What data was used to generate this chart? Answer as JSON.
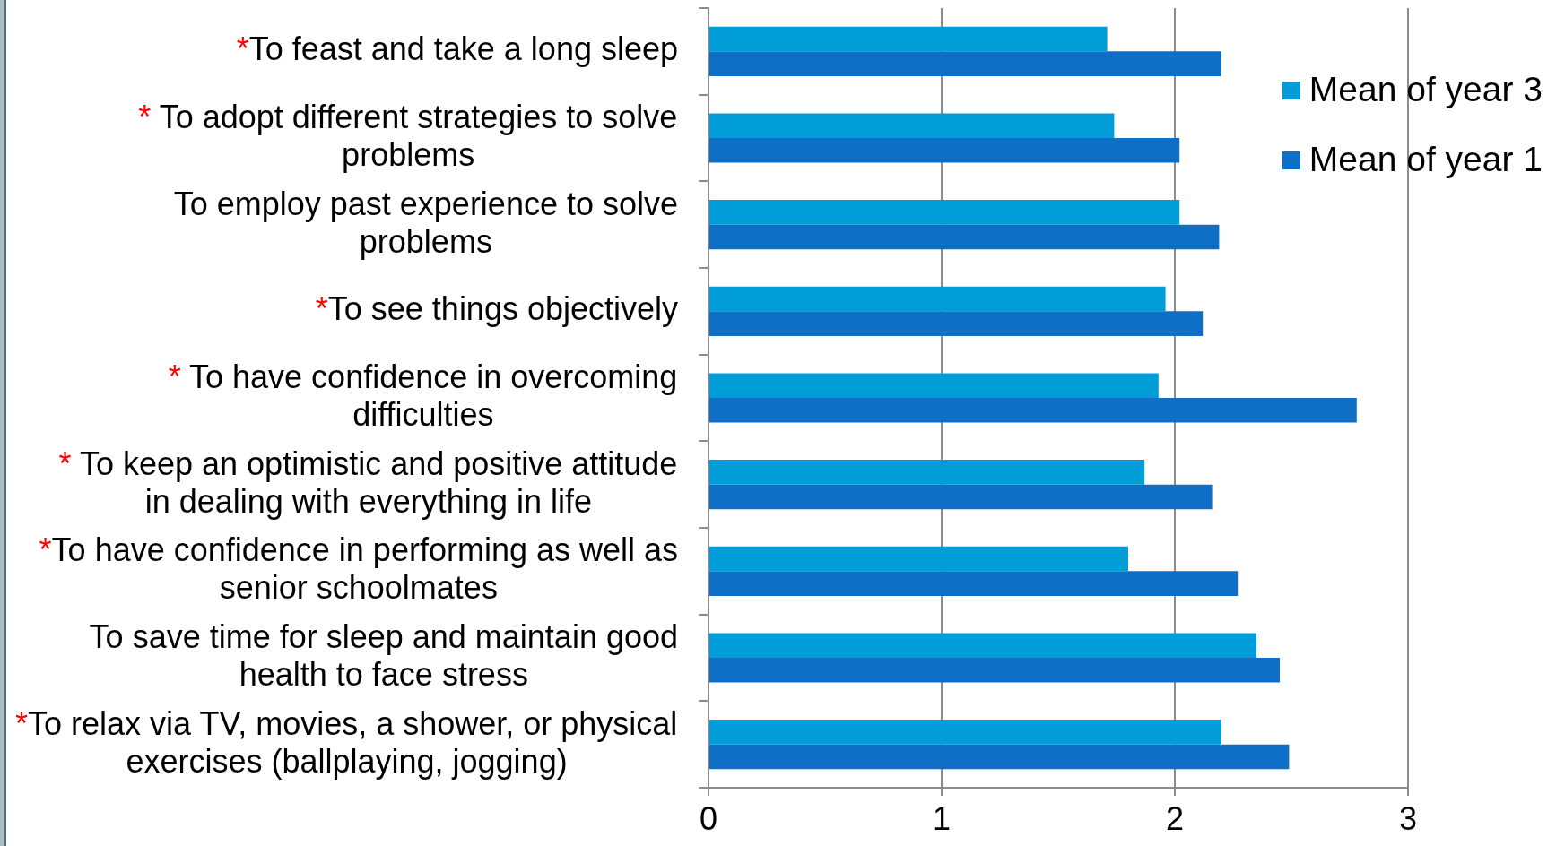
{
  "chart_data": {
    "type": "bar",
    "orientation": "horizontal",
    "categories": [
      "*To feast and take a long sleep",
      "* To adopt different strategies to solve\nproblems",
      "To employ past experience to solve\nproblems",
      "*To see things objectively",
      "* To have confidence in overcoming\ndifficulties",
      "* To keep an optimistic and positive attitude\nin dealing with everything in life",
      "*To have confidence in performing as well as\nsenior schoolmates",
      "To save time for sleep and maintain good\nhealth to face stress",
      "*To relax via TV, movies, a shower, or physical\nexercises (ballplaying, jogging)"
    ],
    "series": [
      {
        "name": "Mean of year 3",
        "color": "#009dd9",
        "values": [
          1.71,
          1.74,
          2.02,
          1.96,
          1.93,
          1.87,
          1.8,
          2.35,
          2.2
        ]
      },
      {
        "name": "Mean of year 1",
        "color": "#0f6fc6",
        "values": [
          2.2,
          2.02,
          2.19,
          2.12,
          2.78,
          2.16,
          2.27,
          2.45,
          2.49
        ]
      }
    ],
    "xlim": [
      0,
      3
    ],
    "xticks": [
      0,
      1,
      2,
      3
    ],
    "grid": "x",
    "legend": "top right"
  }
}
